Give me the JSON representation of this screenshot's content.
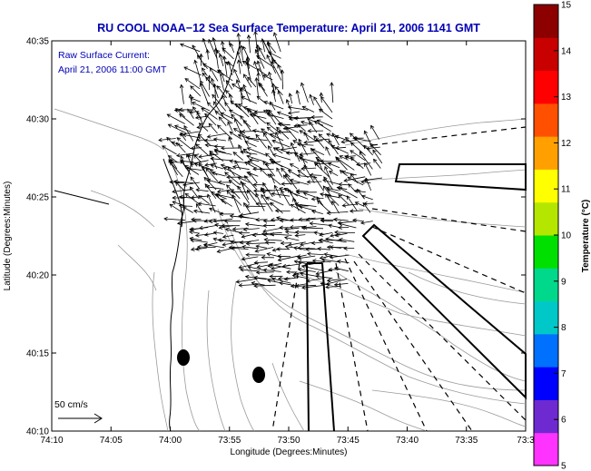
{
  "title": "RU COOL  NOAA−12  Sea Surface Temperature:  April 21, 2006 1141 GMT",
  "annotation": {
    "line1": "Raw Surface Current:",
    "line2": "April 21, 2006 11:00 GMT"
  },
  "scale_label": "50 cm/s",
  "x_axis": {
    "label": "Longitude (Degrees:Minutes)",
    "ticks": [
      "74:10",
      "74:05",
      "74:00",
      "73:55",
      "73:50",
      "73:45",
      "73:40",
      "73:35",
      "73:3"
    ]
  },
  "y_axis": {
    "label": "Latitude (Degrees:Minutes)",
    "ticks": [
      "40:35",
      "40:30",
      "40:25",
      "40:20",
      "40:15",
      "40:10"
    ]
  },
  "colorbar": {
    "label": "Temperature (°C)",
    "ticks": [
      "15",
      "14",
      "13",
      "12",
      "11",
      "10",
      "9",
      "8",
      "7",
      "6",
      "5"
    ],
    "colors": [
      "#ff33ff",
      "#6e2ad0",
      "#0000ff",
      "#0070ff",
      "#00c8c8",
      "#00d98c",
      "#00e000",
      "#b4e600",
      "#ffff00",
      "#ffa000",
      "#ff5000",
      "#ff0000",
      "#c80000",
      "#8c0000"
    ]
  },
  "chart_data": {
    "type": "map",
    "title": "RU COOL  NOAA−12  Sea Surface Temperature:  April 21, 2006 1141 GMT",
    "xlabel": "Longitude (Degrees:Minutes)",
    "ylabel": "Latitude (Degrees:Minutes)",
    "xlim": [
      "74:10",
      "73:30"
    ],
    "ylim": [
      "40:10",
      "40:35"
    ],
    "colorbar_range": [
      5,
      15
    ],
    "colorbar_label": "Temperature (°C)",
    "legend": "Raw Surface Current: April 21, 2006 11:00 GMT",
    "vector_scale": "50 cm/s"
  }
}
